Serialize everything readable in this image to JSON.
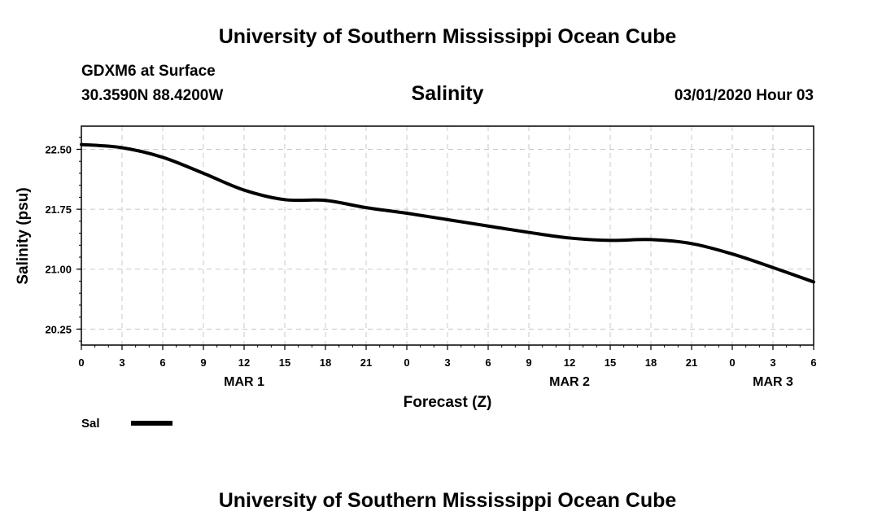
{
  "page": {
    "top_title": "University of Southern Mississippi Ocean Cube",
    "bottom_title": "University of Southern Mississippi Ocean Cube",
    "station": "GDXM6 at Surface",
    "location": "30.3590N 88.4200W",
    "datetime": "03/01/2020 Hour 03"
  },
  "chart_data": {
    "type": "line",
    "title": "Salinity",
    "xlabel": "Forecast (Z)",
    "ylabel": "Salinity (psu)",
    "x_tick_labels": [
      "0",
      "3",
      "6",
      "9",
      "12",
      "15",
      "18",
      "21",
      "0",
      "3",
      "6",
      "9",
      "12",
      "15",
      "18",
      "21",
      "0",
      "3",
      "6"
    ],
    "day_labels": [
      {
        "label": "MAR 1",
        "tick_index": 4
      },
      {
        "label": "MAR 2",
        "tick_index": 12
      },
      {
        "label": "MAR 3",
        "tick_index": 17
      }
    ],
    "y_ticks": [
      "20.25",
      "21.00",
      "21.75",
      "22.50"
    ],
    "ylim": [
      20.05,
      22.79
    ],
    "grid": true,
    "legend_position": "bottom-left",
    "series": [
      {
        "name": "Sal",
        "color": "#000000",
        "x": [
          0,
          3,
          6,
          9,
          12,
          15,
          18,
          21,
          24,
          27,
          30,
          33,
          36,
          39,
          42,
          45,
          48,
          51,
          54
        ],
        "values": [
          22.56,
          22.52,
          22.4,
          22.2,
          21.99,
          21.87,
          21.86,
          21.77,
          21.7,
          21.62,
          21.54,
          21.46,
          21.39,
          21.36,
          21.37,
          21.32,
          21.19,
          21.02,
          20.84
        ]
      }
    ]
  }
}
